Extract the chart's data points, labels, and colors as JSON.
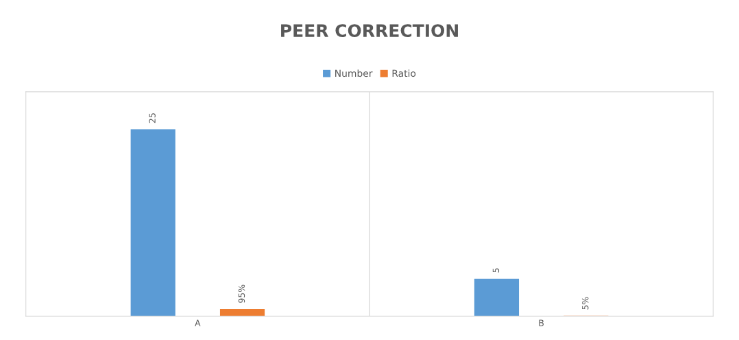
{
  "chart_data": {
    "type": "bar",
    "title": "PEER CORRECTION",
    "categories": [
      "A",
      "B"
    ],
    "series": [
      {
        "name": "Number",
        "color": "#5b9bd5",
        "values": [
          25,
          5
        ],
        "value_labels": [
          "25",
          "5"
        ]
      },
      {
        "name": "Ratio",
        "color": "#ed7d31",
        "values": [
          0.95,
          0.05
        ],
        "value_labels": [
          "95%",
          "5%"
        ]
      }
    ],
    "grid": "x",
    "legend": "top",
    "tick_labels": "x"
  }
}
